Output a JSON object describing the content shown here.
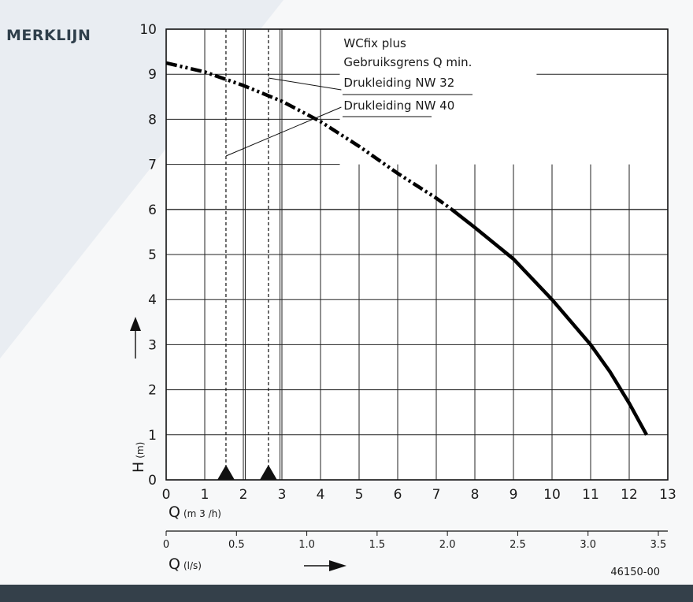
{
  "brand": "MERKLIJN",
  "colors": {
    "footer_bar": "#34404a",
    "background": "#f7f8f9",
    "curve": "#000000"
  },
  "figure_code": "46150-00",
  "chart_data": {
    "type": "line",
    "title": "",
    "legend": [
      "WCfix plus",
      "Gebruiksgrens Q min.",
      "Drukleiding NW 32",
      "Drukleiding NW 40"
    ],
    "x_axis": {
      "label": "Q",
      "unit": "(m 3 /h)",
      "range": [
        0,
        13
      ],
      "ticks": [
        "0",
        "1",
        "2",
        "3",
        "4",
        "5",
        "6",
        "7",
        "8",
        "9",
        "10",
        "11",
        "12",
        "13"
      ]
    },
    "x2_axis": {
      "label": "Q",
      "unit": "(l/s)",
      "range": [
        0,
        3.5
      ],
      "ticks": [
        "0",
        "0.5",
        "1.0",
        "1.5",
        "2.0",
        "2.5",
        "3.0",
        "3.5"
      ]
    },
    "y_axis": {
      "label": "H",
      "unit": "(m)",
      "range": [
        0,
        10
      ],
      "ticks": [
        "0",
        "1",
        "2",
        "3",
        "4",
        "5",
        "6",
        "7",
        "8",
        "9",
        "10"
      ]
    },
    "grid": true,
    "series": [
      {
        "name": "WCfix plus",
        "style": "dash-dot (below minimum flow limit), solid (operating range)",
        "x": [
          0,
          1,
          2,
          3,
          4,
          5,
          6,
          7,
          7.4,
          8,
          9,
          10,
          11,
          11.5,
          12,
          12.45
        ],
        "y": [
          9.25,
          9.05,
          8.75,
          8.4,
          7.95,
          7.4,
          6.8,
          6.25,
          6.0,
          5.6,
          4.9,
          4.0,
          3.0,
          2.4,
          1.7,
          1.0
        ]
      }
    ],
    "annotations": [
      {
        "label": "Drukleiding NW 40",
        "minimum_flow_q_m3h": 1.55
      },
      {
        "label": "Drukleiding NW 32",
        "minimum_flow_q_m3h": 2.65
      }
    ]
  }
}
